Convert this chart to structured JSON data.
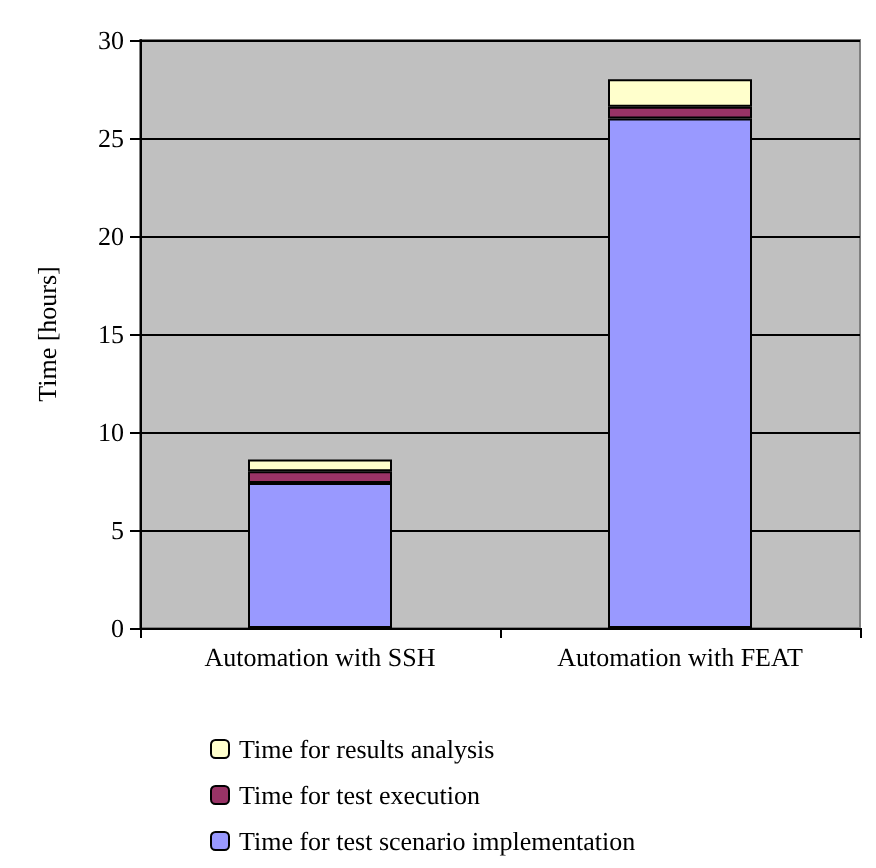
{
  "chart_data": {
    "type": "bar",
    "ylabel": "Time [hours]",
    "categories": [
      "Automation with SSH",
      "Automation with FEAT"
    ],
    "stacked": true,
    "series": [
      {
        "name": "Time for test scenario implementation",
        "color": "#9999ff",
        "values": [
          7.4,
          26.0
        ]
      },
      {
        "name": "Time for test execution",
        "color": "#993366",
        "values": [
          0.6,
          0.6
        ]
      },
      {
        "name": "Time for results analysis",
        "color": "#ffffcc",
        "values": [
          0.6,
          1.4
        ]
      }
    ],
    "ylim": [
      0,
      30
    ],
    "yticks": [
      0,
      5,
      10,
      15,
      20,
      25,
      30
    ],
    "grid": "y",
    "legend": "bottom"
  }
}
